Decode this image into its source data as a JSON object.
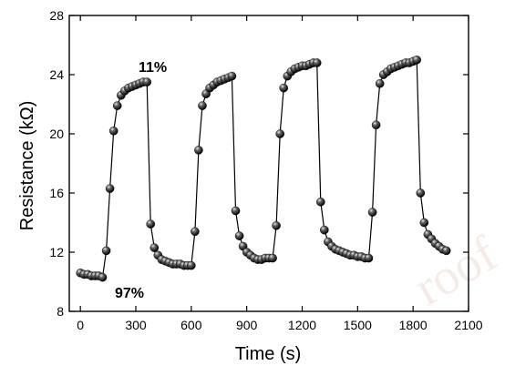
{
  "chart_data": {
    "type": "scatter",
    "xlabel": "Time (s)",
    "ylabel": "Resistance (kΩ)",
    "xlim": [
      -60,
      2100
    ],
    "ylim": [
      8,
      28
    ],
    "x_ticks": [
      0,
      300,
      600,
      900,
      1200,
      1500,
      1800,
      2100
    ],
    "y_ticks": [
      8,
      12,
      16,
      20,
      24,
      28
    ],
    "grid": false,
    "legend": "none",
    "marker": "black sphere",
    "line_color": "#000000",
    "annotations": [
      {
        "text": "11%",
        "x": 330,
        "y": 24.6
      },
      {
        "text": "97%",
        "x": 235,
        "y": 9.2
      }
    ],
    "watermark": "roof",
    "series": [
      {
        "x": [
          0,
          20,
          40,
          60,
          80,
          100,
          120,
          140,
          160,
          180,
          200,
          220,
          240,
          260,
          280,
          300,
          320,
          340,
          360,
          380,
          400,
          420,
          440,
          460,
          480,
          500,
          520,
          540,
          560,
          580,
          600,
          620,
          640,
          660,
          680,
          700,
          720,
          740,
          760,
          780,
          800,
          820,
          840,
          860,
          880,
          900,
          920,
          940,
          960,
          980,
          1000,
          1020,
          1040,
          1060,
          1080,
          1100,
          1120,
          1140,
          1160,
          1180,
          1200,
          1220,
          1240,
          1260,
          1280,
          1300,
          1320,
          1340,
          1360,
          1380,
          1400,
          1420,
          1440,
          1460,
          1480,
          1500,
          1520,
          1540,
          1560,
          1580,
          1600,
          1620,
          1640,
          1660,
          1680,
          1700,
          1720,
          1740,
          1760,
          1780,
          1800,
          1820,
          1840,
          1860,
          1880,
          1900,
          1920,
          1940,
          1960,
          1980
        ],
        "y": [
          10.6,
          10.5,
          10.5,
          10.4,
          10.4,
          10.4,
          10.3,
          12.1,
          16.3,
          20.2,
          21.9,
          22.6,
          22.9,
          23.1,
          23.2,
          23.3,
          23.4,
          23.5,
          23.5,
          13.9,
          12.3,
          11.8,
          11.5,
          11.4,
          11.3,
          11.2,
          11.2,
          11.2,
          11.1,
          11.1,
          11.1,
          13.4,
          18.9,
          21.9,
          22.7,
          23.1,
          23.3,
          23.5,
          23.6,
          23.7,
          23.8,
          23.9,
          14.8,
          13.1,
          12.4,
          12.0,
          11.8,
          11.6,
          11.5,
          11.5,
          11.6,
          11.6,
          11.6,
          13.8,
          20.0,
          23.1,
          23.9,
          24.2,
          24.4,
          24.5,
          24.6,
          24.6,
          24.7,
          24.8,
          24.8,
          15.4,
          13.5,
          12.7,
          12.4,
          12.2,
          12.1,
          12.0,
          11.9,
          11.8,
          11.8,
          11.7,
          11.7,
          11.6,
          11.6,
          14.7,
          20.6,
          23.4,
          24.0,
          24.2,
          24.4,
          24.5,
          24.6,
          24.7,
          24.8,
          24.8,
          24.9,
          25.0,
          16.0,
          14.0,
          13.2,
          12.9,
          12.6,
          12.4,
          12.2,
          12.1
        ]
      }
    ]
  }
}
